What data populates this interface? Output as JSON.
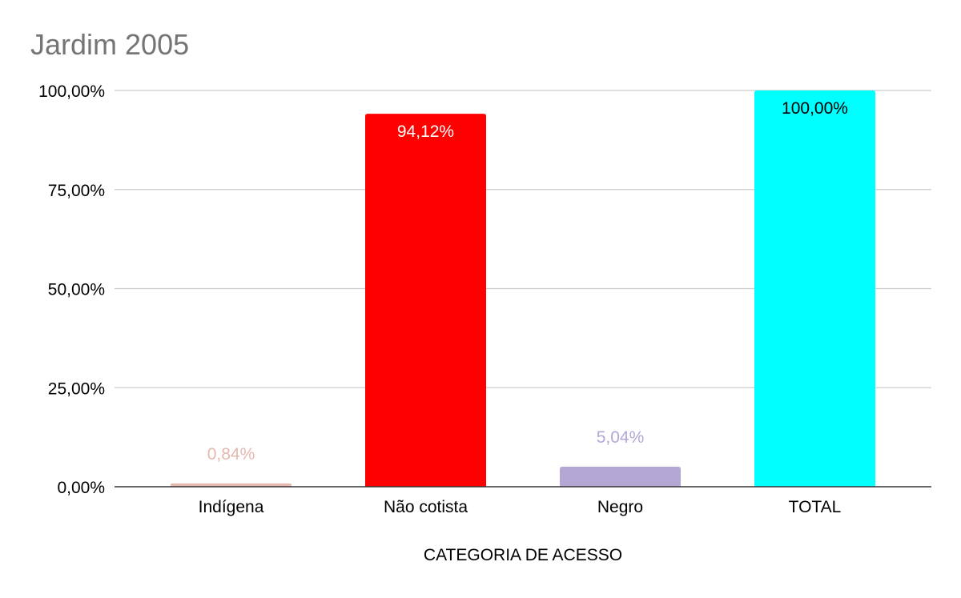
{
  "chart_data": {
    "type": "bar",
    "title": "Jardim 2005",
    "xlabel": "CATEGORIA DE ACESSO",
    "ylabel": "",
    "categories": [
      "Indígena",
      "Não cotista",
      "Negro",
      "TOTAL"
    ],
    "values": [
      0.84,
      94.12,
      5.04,
      100.0
    ],
    "data_labels": [
      "0,84%",
      "94,12%",
      "5,04%",
      "100,00%"
    ],
    "bar_colors": [
      "#e6b8af",
      "#ff0000",
      "#b4a7d6",
      "#00ffff"
    ],
    "data_label_colors": [
      "#e6b8af",
      "#ffffff",
      "#b4a7d6",
      "#000000"
    ],
    "data_label_position": [
      "outside",
      "inside",
      "outside",
      "inside"
    ],
    "ylim": [
      0,
      100
    ],
    "yticks": [
      0,
      25,
      50,
      75,
      100
    ],
    "ytick_labels": [
      "0,00%",
      "25,00%",
      "50,00%",
      "75,00%",
      "100,00%"
    ],
    "grid": true,
    "gridline_color": "#cccccc",
    "axis_color": "#333333"
  }
}
